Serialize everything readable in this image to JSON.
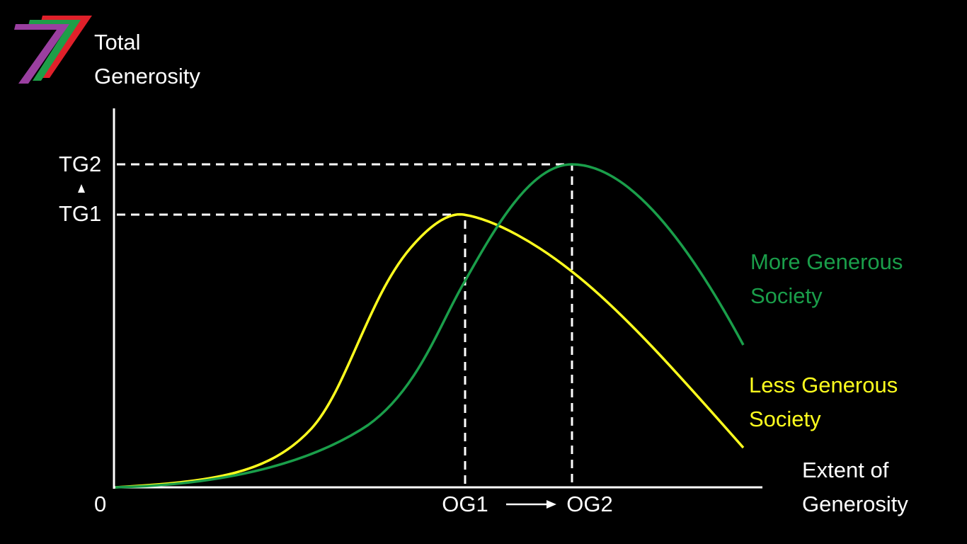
{
  "y_axis": {
    "label_lines": [
      "Total",
      "Generosity"
    ]
  },
  "x_axis": {
    "label_lines": [
      "Extent of",
      "Generosity"
    ],
    "origin": "0"
  },
  "levels": {
    "tg2": "TG2",
    "tg1": "TG1",
    "og1": "OG1",
    "og2": "OG2"
  },
  "curves": [
    {
      "label_lines": [
        "More Generous",
        "Society"
      ]
    },
    {
      "label_lines": [
        "Less Generous",
        "Society"
      ]
    }
  ]
}
